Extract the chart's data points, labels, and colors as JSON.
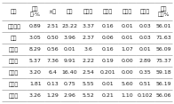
{
  "col_headers": [
    "矿名",
    "矿化\n比-%",
    "±英",
    "长石",
    "钙长石",
    "钛铁矿",
    "方铅矿",
    "闪锌矿",
    "平均\n品位%"
  ],
  "rows": [
    [
      "氟卡长石",
      "0.89",
      "2.51",
      "23.22",
      "3.37",
      "0.16",
      "0.01",
      "0.03",
      "56.01"
    ],
    [
      "云母",
      "3.05",
      "0.50",
      "3.96",
      "2.37",
      "0.06",
      "0.01",
      "0.03",
      "71.63"
    ],
    [
      "方解石",
      "8.29",
      "0.56",
      "0.01",
      "3.6",
      "0.16",
      "1.07",
      "0.01",
      "56.09"
    ],
    [
      "辉石矿",
      "5.37",
      "7.36",
      "9.91",
      "2.22",
      "0.19",
      "0.00",
      "2.89",
      "75.37"
    ],
    [
      "铁橄榄",
      "3.20",
      "6.4",
      "16.40",
      "2.54",
      "0.201",
      "0.00",
      "0.35",
      "59.18"
    ],
    [
      "磁铁矿",
      "1.81",
      "0.13",
      "0.75",
      "5.55",
      "0.01",
      "5.60",
      "0.51",
      "56.19"
    ],
    [
      "总元素",
      "3.26",
      "1.29",
      "2.96",
      "5.52",
      "0.21",
      "1.10",
      "0.102",
      "56.06"
    ]
  ],
  "bg_color": "#ffffff",
  "header_bg": "#ffffff",
  "line_color": "#888888",
  "text_color": "#222222",
  "font_size": 4.5
}
